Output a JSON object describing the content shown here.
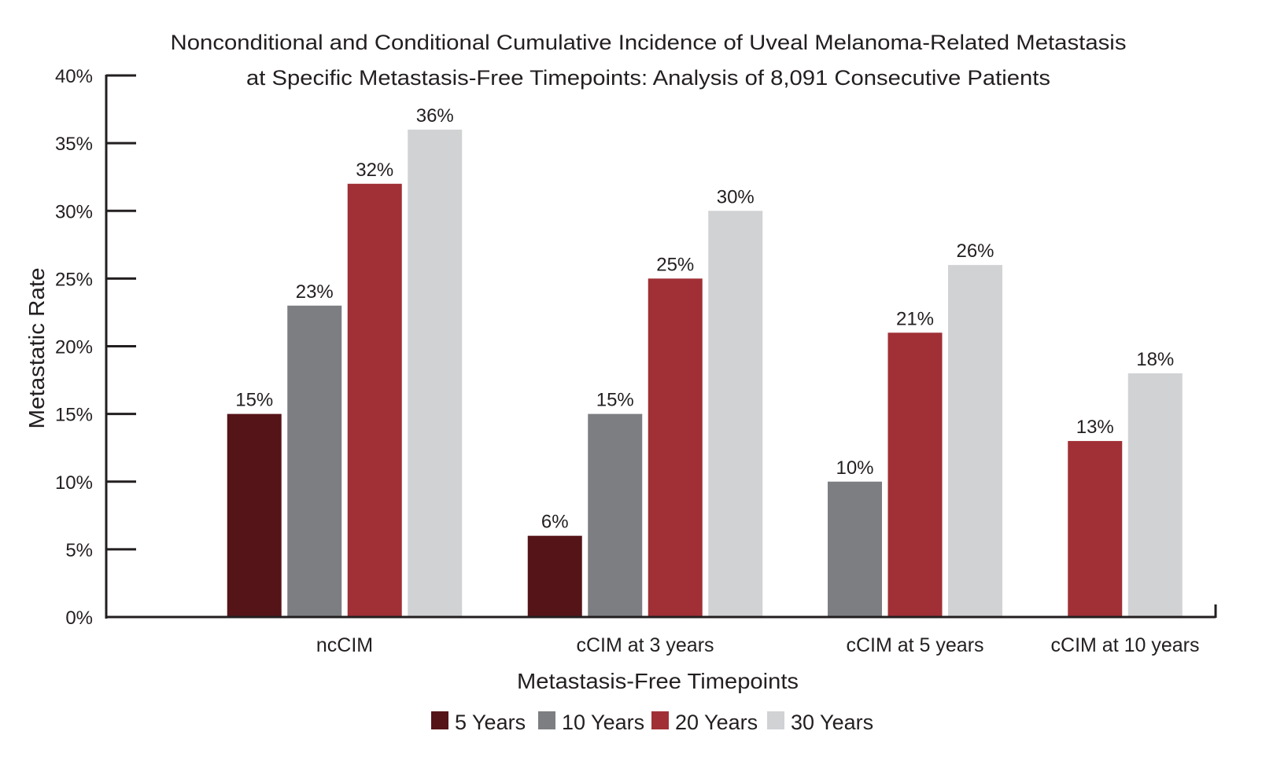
{
  "chart_data": {
    "type": "bar",
    "title": [
      "Nonconditional and Conditional Cumulative Incidence of Uveal Melanoma-Related Metastasis",
      "at Specific Metastasis-Free Timepoints: Analysis of 8,091 Consecutive Patients"
    ],
    "xlabel": "Metastasis-Free Timepoints",
    "ylabel": "Metastatic Rate",
    "ylim": [
      0,
      40
    ],
    "yticks": [
      "0%",
      "5%",
      "10%",
      "15%",
      "20%",
      "25%",
      "30%",
      "35%",
      "40%"
    ],
    "grid": false,
    "legend_position": "bottom",
    "categories": [
      "ncCIM",
      "cCIM at 3 years",
      "cCIM at 5 years",
      "cCIM at 10 years"
    ],
    "series": [
      {
        "name": "5 Years",
        "color": "#551418",
        "values": [
          15,
          6,
          null,
          null
        ],
        "labels": [
          "15%",
          "6%",
          null,
          null
        ]
      },
      {
        "name": "10 Years",
        "color": "#7d7e82",
        "values": [
          23,
          15,
          10,
          null
        ],
        "labels": [
          "23%",
          "15%",
          "10%",
          null
        ]
      },
      {
        "name": "20 Years",
        "color": "#a03036",
        "values": [
          32,
          25,
          21,
          13
        ],
        "labels": [
          "32%",
          "25%",
          "21%",
          "13%"
        ]
      },
      {
        "name": "30 Years",
        "color": "#d1d2d4",
        "values": [
          36,
          30,
          26,
          18
        ],
        "labels": [
          "36%",
          "30%",
          "26%",
          "18%"
        ]
      }
    ]
  }
}
